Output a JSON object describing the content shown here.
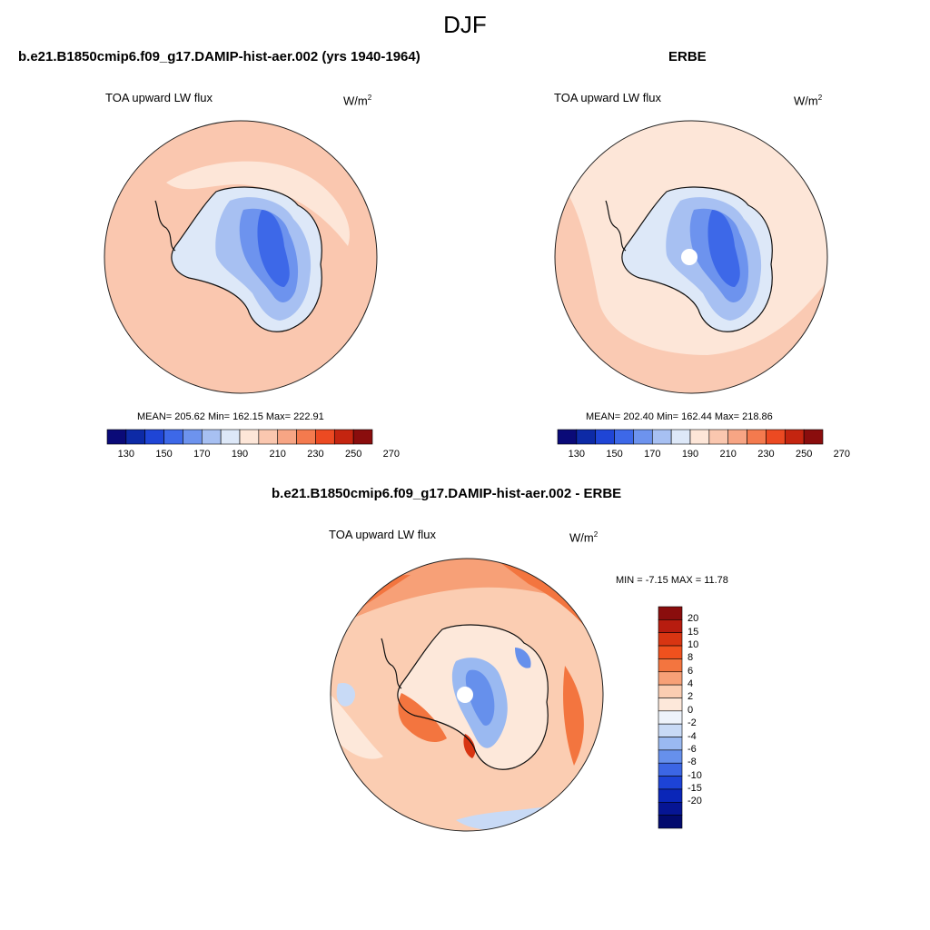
{
  "season": "DJF",
  "panel_left": {
    "title": "b.e21.B1850cmip6.f09_g17.DAMIP-hist-aer.002 (yrs 1940-1964)",
    "variable": "TOA upward LW flux",
    "units": "W/m",
    "units_sup": "2",
    "stats": "MEAN= 205.62  Min= 162.15  Max= 222.91"
  },
  "panel_right": {
    "title": "ERBE",
    "variable": "TOA upward LW flux",
    "units": "W/m",
    "units_sup": "2",
    "stats": "MEAN= 202.40  Min= 162.44  Max= 218.86"
  },
  "panel_diff": {
    "title": "b.e21.B1850cmip6.f09_g17.DAMIP-hist-aer.002 - ERBE",
    "variable": "TOA upward LW flux",
    "units": "W/m",
    "units_sup": "2",
    "minmax": "MIN =  -7.15 MAX =  11.78"
  },
  "abs_colorbar": {
    "colors": [
      "#0a0a78",
      "#0d2aa6",
      "#1f45d6",
      "#3d68e8",
      "#6d93ee",
      "#a7c0f2",
      "#dde8f8",
      "#fde6d8",
      "#fac7af",
      "#f7a584",
      "#f47a4e",
      "#ec4a22",
      "#c42510",
      "#8a0d0d"
    ],
    "tick_labels": [
      "130",
      "150",
      "170",
      "190",
      "210",
      "230",
      "250",
      "270"
    ]
  },
  "diff_colorbar": {
    "colors": [
      "#8a0d0d",
      "#b71c0f",
      "#d83512",
      "#f0511e",
      "#f3753f",
      "#f7a077",
      "#fbcdb2",
      "#fde8da",
      "#eef3fb",
      "#c8daf6",
      "#9ab9f1",
      "#6690ec",
      "#3c66e4",
      "#1d43d6",
      "#0a26b8",
      "#061594",
      "#020a6e"
    ],
    "tick_labels": [
      "20",
      "15",
      "10",
      "8",
      "6",
      "4",
      "2",
      "0",
      "-2",
      "-4",
      "-6",
      "-8",
      "-10",
      "-15",
      "-20"
    ]
  },
  "map_colors": {
    "ocean_left": "#fac7af",
    "ocean_right": "#fde6d8",
    "diff_ocean": "#fbcdb2",
    "coast": "#111111"
  }
}
